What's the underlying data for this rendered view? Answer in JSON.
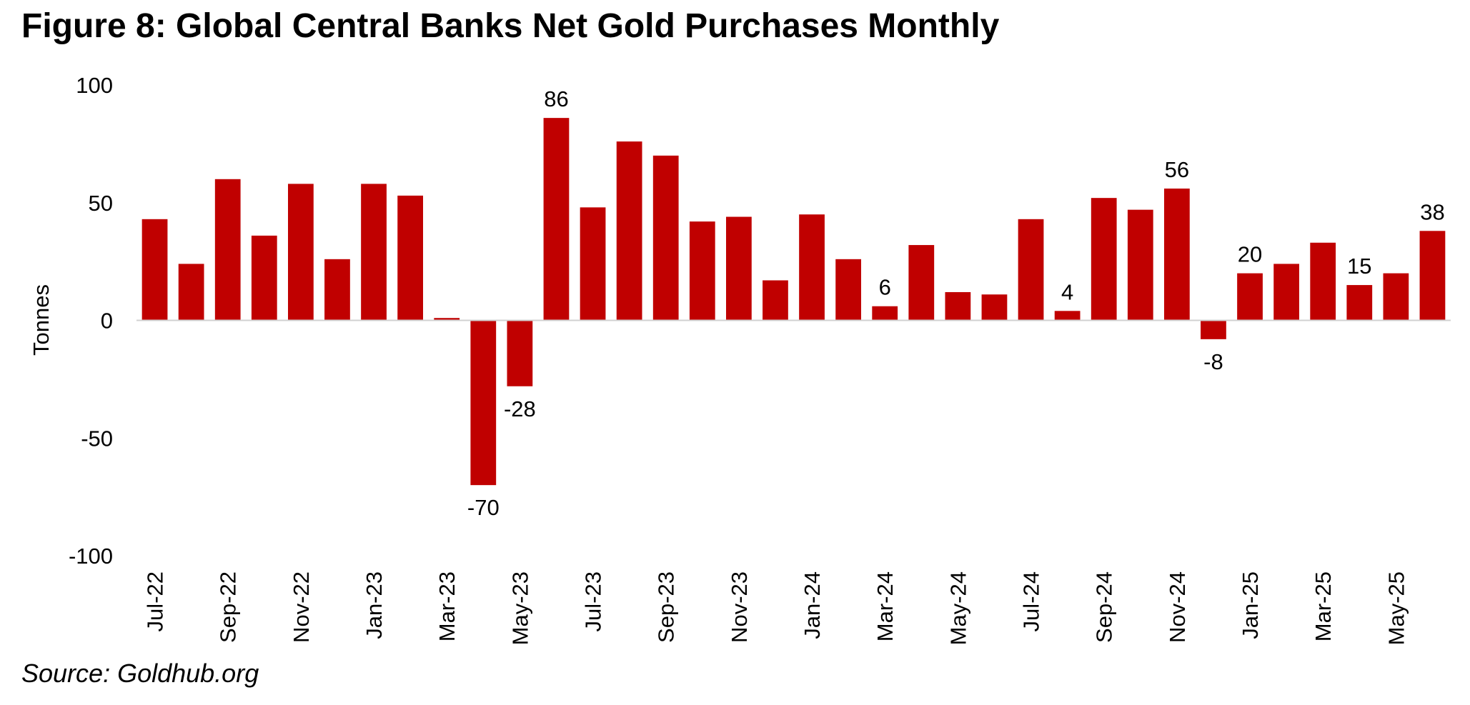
{
  "chart_data": {
    "type": "bar",
    "title": "Figure 8: Global Central Banks Net Gold Purchases Monthly",
    "y_label": "Tonnes",
    "source": "Source: Goldhub.org",
    "categories": [
      "Jul-22",
      null,
      "Sep-22",
      null,
      "Nov-22",
      null,
      "Jan-23",
      null,
      "Mar-23",
      null,
      "May-23",
      null,
      "Jul-23",
      null,
      "Sep-23",
      null,
      "Nov-23",
      null,
      "Jan-24",
      null,
      "Mar-24",
      null,
      "May-24",
      null,
      "Jul-24",
      null,
      "Sep-24",
      null,
      "Nov-24",
      null,
      "Jan-25",
      null,
      "Mar-25",
      null,
      "May-25",
      null
    ],
    "values": [
      43,
      24,
      60,
      36,
      58,
      26,
      58,
      53,
      1,
      -70,
      -28,
      86,
      48,
      76,
      70,
      42,
      44,
      17,
      45,
      26,
      6,
      32,
      12,
      11,
      43,
      4,
      52,
      47,
      56,
      -8,
      20,
      24,
      33,
      15,
      20,
      38
    ],
    "value_labels": [
      null,
      null,
      null,
      null,
      null,
      null,
      null,
      null,
      null,
      "-70",
      "-28",
      "86",
      null,
      null,
      null,
      null,
      null,
      null,
      null,
      null,
      "6",
      null,
      null,
      null,
      null,
      "4",
      null,
      null,
      "56",
      "-8",
      "20",
      null,
      null,
      "15",
      null,
      "38"
    ],
    "color": "#c00000",
    "ylim": [
      -100,
      100
    ],
    "yticks": [
      -100,
      -50,
      0,
      50,
      100
    ]
  }
}
